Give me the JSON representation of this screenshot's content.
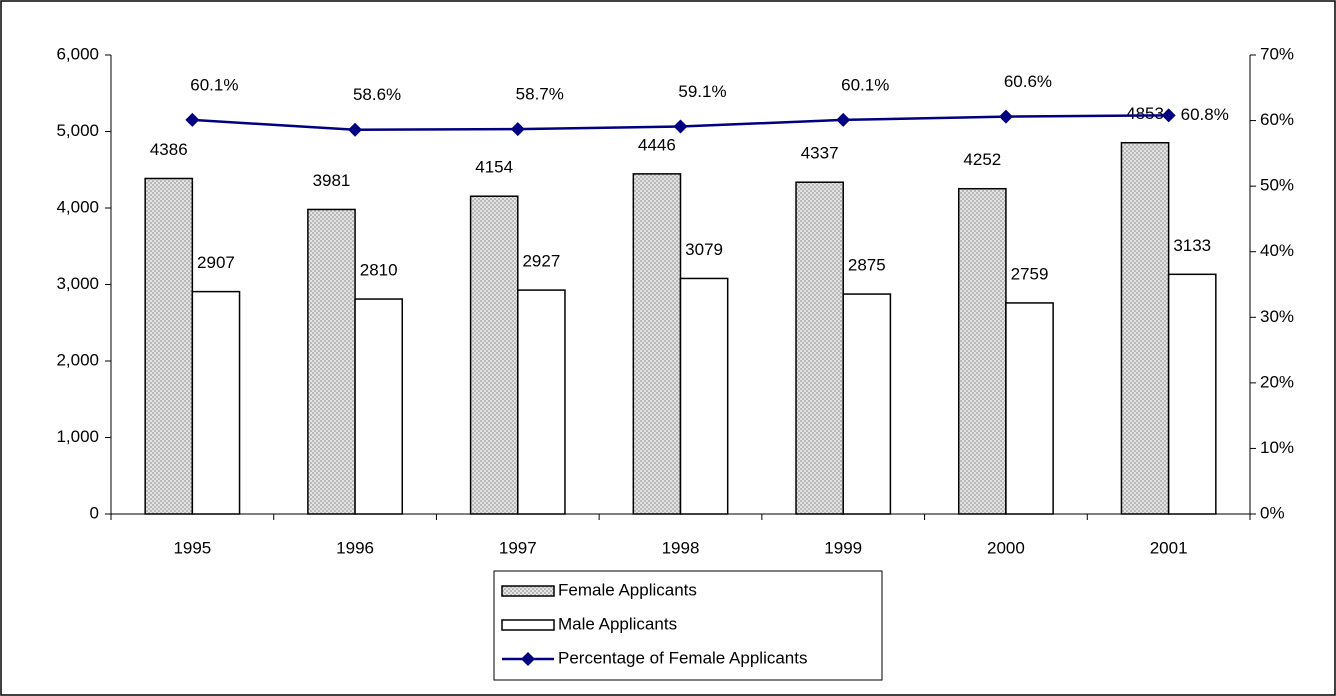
{
  "chart_data": {
    "type": "bar",
    "categories": [
      "1995",
      "1996",
      "1997",
      "1998",
      "1999",
      "2000",
      "2001"
    ],
    "series": [
      {
        "name": "Female Applicants",
        "type": "bar",
        "color": "#c8c8c8",
        "values": [
          4386,
          3981,
          4154,
          4446,
          4337,
          4252,
          4853
        ]
      },
      {
        "name": "Male Applicants",
        "type": "bar",
        "color": "#ffffff",
        "values": [
          2907,
          2810,
          2927,
          3079,
          2875,
          2759,
          3133
        ]
      },
      {
        "name": "Percentage of Female Applicants",
        "type": "line",
        "axis": "y2",
        "color": "#000080",
        "values": [
          60.1,
          58.6,
          58.7,
          59.1,
          60.1,
          60.6,
          60.8
        ],
        "value_labels": [
          "60.1%",
          "58.6%",
          "58.7%",
          "59.1%",
          "60.1%",
          "60.6%",
          "60.8%"
        ]
      }
    ],
    "ylim": [
      0,
      6000
    ],
    "yticks": [
      0,
      {
        "value": 1000,
        "label": "1,000"
      },
      {
        "value": 2000,
        "label": "2,000"
      },
      {
        "value": 3000,
        "label": "3,000"
      },
      {
        "value": 4000,
        "label": "4,000"
      },
      {
        "value": 5000,
        "label": "5,000"
      },
      {
        "value": 6000,
        "label": "6,000"
      }
    ],
    "y2lim": [
      0,
      70
    ],
    "y2ticks": [
      {
        "value": 0,
        "label": "0%"
      },
      {
        "value": 10,
        "label": "10%"
      },
      {
        "value": 20,
        "label": "20%"
      },
      {
        "value": 30,
        "label": "30%"
      },
      {
        "value": 40,
        "label": "40%"
      },
      {
        "value": 50,
        "label": "50%"
      },
      {
        "value": 60,
        "label": "60%"
      },
      {
        "value": 70,
        "label": "70%"
      }
    ],
    "legend": "bottom"
  }
}
